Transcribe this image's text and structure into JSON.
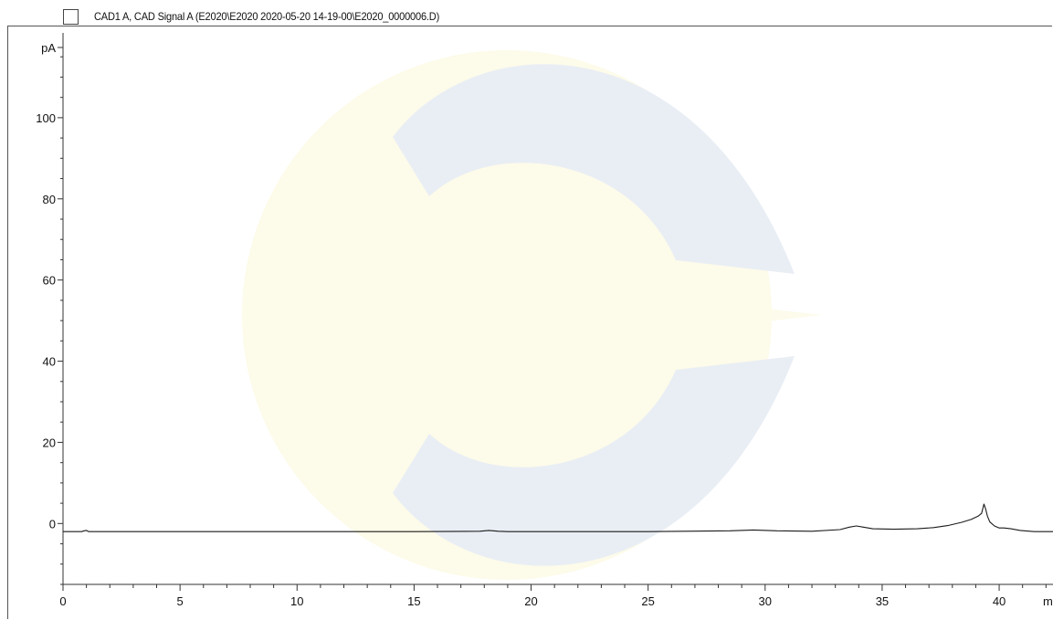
{
  "legend": {
    "label": "CAD1 A, CAD Signal A (E2020\\E2020 2020-05-20 14-19-00\\E2020_0000006.D)"
  },
  "colors": {
    "trace": "#1a1a1a",
    "axis": "#333333",
    "watermark_blue": "#e9eef5",
    "watermark_yellow": "#fdfbe9"
  },
  "chart_data": {
    "type": "line",
    "title": "",
    "xlabel": "min",
    "ylabel": "pA",
    "xlim": [
      0,
      42.3
    ],
    "ylim": [
      -15,
      120
    ],
    "x_ticks": [
      0,
      5,
      10,
      15,
      20,
      25,
      30,
      35,
      40
    ],
    "y_ticks": [
      0,
      20,
      40,
      60,
      80,
      100
    ],
    "grid": false,
    "legend_position": "top-left",
    "series": [
      {
        "name": "CAD1 A, CAD Signal A",
        "x": [
          0,
          0.8,
          0.9,
          1.0,
          1.1,
          5,
          10,
          15,
          17.8,
          18.2,
          18.6,
          19,
          25,
          28.5,
          29.5,
          30.5,
          32,
          33.2,
          33.6,
          33.9,
          34.2,
          34.6,
          35.5,
          36.5,
          37.2,
          37.8,
          38.4,
          38.8,
          39.1,
          39.25,
          39.35,
          39.42,
          39.5,
          39.6,
          39.8,
          40.0,
          40.2,
          40.5,
          40.9,
          41.5,
          42.3
        ],
        "y": [
          -2.0,
          -2.0,
          -1.8,
          -1.7,
          -2.0,
          -2.0,
          -2.0,
          -2.0,
          -1.9,
          -1.7,
          -1.9,
          -2.0,
          -2.0,
          -1.8,
          -1.6,
          -1.8,
          -1.9,
          -1.5,
          -0.9,
          -0.6,
          -0.9,
          -1.3,
          -1.4,
          -1.3,
          -1.0,
          -0.5,
          0.3,
          1.0,
          1.8,
          2.5,
          4.8,
          3.6,
          1.8,
          0.4,
          -0.6,
          -1.1,
          -1.1,
          -1.3,
          -1.7,
          -2.0,
          -2.0
        ]
      }
    ]
  }
}
